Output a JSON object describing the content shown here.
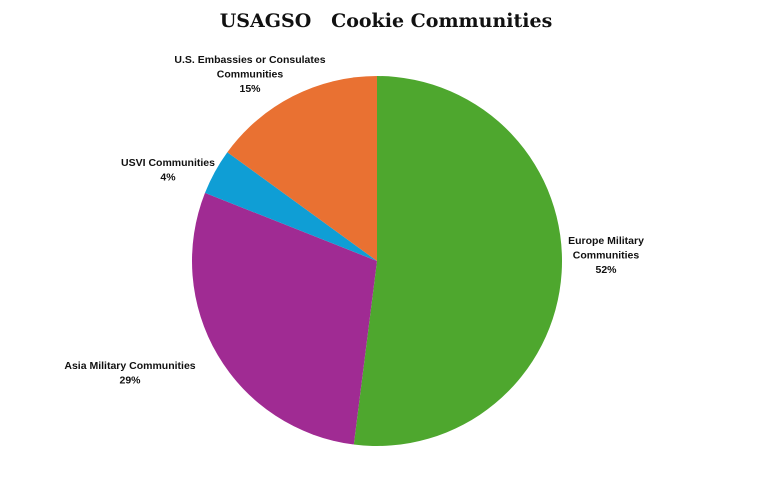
{
  "chart_data": {
    "type": "pie",
    "title": "USAGSO   Cookie Communities",
    "start_angle_deg": 0,
    "direction": "clockwise",
    "slices": [
      {
        "name": "Europe Military Communities",
        "label_lines": [
          "Europe Military",
          "Communities"
        ],
        "value": 52,
        "value_label": "52%",
        "color": "#4ea72e"
      },
      {
        "name": "Asia Military Communities",
        "label_lines": [
          "Asia Military Communities"
        ],
        "value": 29,
        "value_label": "29%",
        "color": "#a02b93"
      },
      {
        "name": "USVI Communities",
        "label_lines": [
          "USVI Communities"
        ],
        "value": 4,
        "value_label": "4%",
        "color": "#0f9ed5"
      },
      {
        "name": "U.S. Embassies or Consulates Communities",
        "label_lines": [
          "U.S. Embassies or Consulates",
          "Communities"
        ],
        "value": 15,
        "value_label": "15%",
        "color": "#e97132"
      }
    ],
    "legend": "none",
    "label_placement": "outside"
  }
}
